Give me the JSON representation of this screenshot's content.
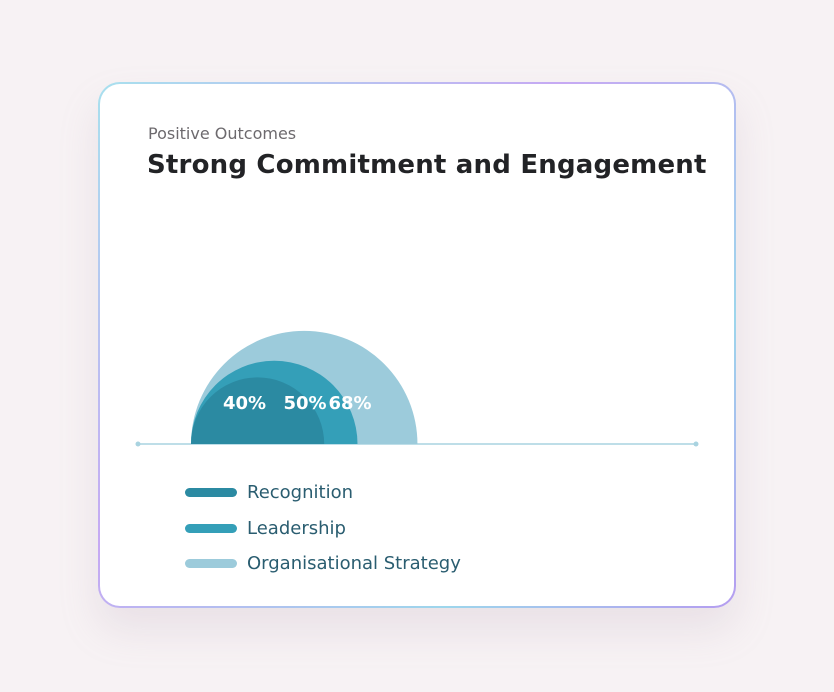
{
  "header": {
    "subtitle": "Positive Outcomes",
    "title": "Strong Commitment and Engagement"
  },
  "colors": {
    "background": "#f7f2f4",
    "axis": "#a9d3e0",
    "value_label": "#ffffff"
  },
  "chart_data": {
    "type": "semicircle-area",
    "title": "Strong Commitment and Engagement",
    "subtitle": "Positive Outcomes",
    "unit": "%",
    "max": 100,
    "series": [
      {
        "name": "Organisational Strategy",
        "value": 68,
        "label": "68%",
        "color": "#9ccbdb"
      },
      {
        "name": "Leadership",
        "value": 50,
        "label": "50%",
        "color": "#349fb8"
      },
      {
        "name": "Recognition",
        "value": 40,
        "label": "40%",
        "color": "#2b8aa2"
      }
    ],
    "legend": {
      "position": "bottom-left",
      "order": [
        "Recognition",
        "Leadership",
        "Organisational Strategy"
      ]
    }
  }
}
